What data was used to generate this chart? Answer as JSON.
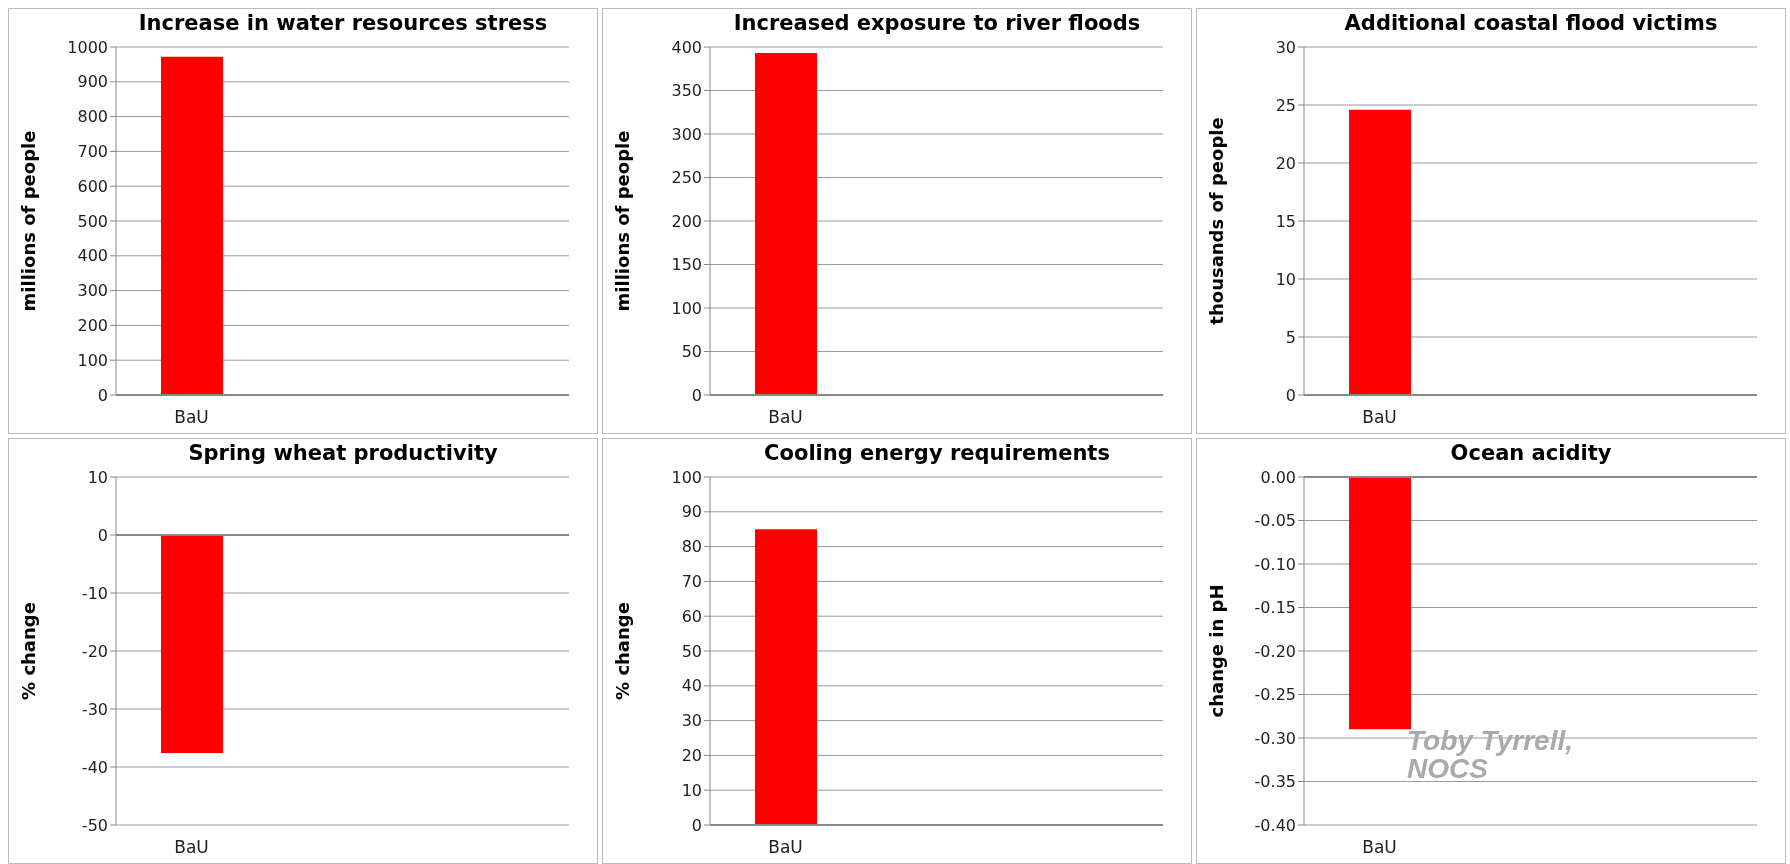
{
  "chart_data": [
    {
      "type": "bar",
      "title": "Increase in water resources stress",
      "ylabel": "millions of people",
      "categories": [
        "BaU",
        null,
        null
      ],
      "values": [
        972,
        null,
        null
      ],
      "color": "#ff0000",
      "ylim": [
        0,
        1000
      ],
      "yticks": [
        0,
        100,
        200,
        300,
        400,
        500,
        600,
        700,
        800,
        900,
        1000
      ],
      "grid": "y"
    },
    {
      "type": "bar",
      "title": "Increased exposure to river floods",
      "ylabel": "millions of people",
      "categories": [
        "BaU",
        null,
        null
      ],
      "values": [
        393,
        null,
        null
      ],
      "color": "#ff0000",
      "ylim": [
        0,
        400
      ],
      "yticks": [
        0,
        50,
        100,
        150,
        200,
        250,
        300,
        350,
        400
      ],
      "grid": "y"
    },
    {
      "type": "bar",
      "title": "Additional coastal flood victims",
      "ylabel": "thousands of people",
      "categories": [
        "BaU",
        null,
        null
      ],
      "values": [
        24.6,
        null,
        null
      ],
      "color": "#ff0000",
      "ylim": [
        0,
        30
      ],
      "yticks": [
        0,
        5,
        10,
        15,
        20,
        25,
        30
      ],
      "grid": "y"
    },
    {
      "type": "bar",
      "title": "Spring wheat productivity",
      "ylabel": "% change",
      "categories": [
        "BaU",
        null,
        null
      ],
      "values": [
        -37.6,
        null,
        null
      ],
      "color": "#ff0000",
      "ylim": [
        -50,
        10
      ],
      "yticks": [
        -50,
        -40,
        -30,
        -20,
        -10,
        0,
        10
      ],
      "grid": "y"
    },
    {
      "type": "bar",
      "title": "Cooling energy requirements",
      "ylabel": "% change",
      "categories": [
        "BaU",
        null,
        null
      ],
      "values": [
        85,
        null,
        null
      ],
      "color": "#ff0000",
      "ylim": [
        0,
        100
      ],
      "yticks": [
        0,
        10,
        20,
        30,
        40,
        50,
        60,
        70,
        80,
        90,
        100
      ],
      "grid": "y"
    },
    {
      "type": "bar",
      "title": "Ocean acidity",
      "ylabel": "change in pH",
      "categories": [
        "BaU",
        null,
        null
      ],
      "values": [
        -0.29,
        null,
        null
      ],
      "color": "#ff0000",
      "ylim": [
        -0.4,
        0
      ],
      "yticks": [
        {
          "value": -0.4,
          "label": "-0.40"
        },
        {
          "value": -0.35,
          "label": "-0.35"
        },
        {
          "value": -0.3,
          "label": "-0.30"
        },
        {
          "value": -0.25,
          "label": "-0.25"
        },
        {
          "value": -0.2,
          "label": "-0.20"
        },
        {
          "value": -0.15,
          "label": "-0.15"
        },
        {
          "value": -0.1,
          "label": "-0.10"
        },
        {
          "value": -0.05,
          "label": "-0.05"
        },
        {
          "value": 0,
          "label": "0.00"
        }
      ],
      "grid": "y",
      "annotations": [
        "Toby Tyrrell, NOCS"
      ]
    }
  ]
}
